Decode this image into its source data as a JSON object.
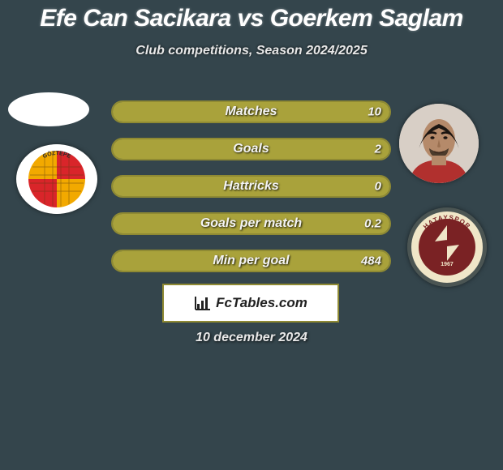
{
  "colors": {
    "background": "#34454c",
    "title": "#ffffff",
    "subtitle": "#e8e8e8",
    "bar_fill": "#a9a23b",
    "bar_border": "#8f8a33",
    "bar_text": "#f4f4f4",
    "brand_border": "#8f8a33",
    "date_text": "#e8e8e8",
    "badge_left_yellow": "#f2a900",
    "badge_left_red": "#d9252a",
    "badge_right_bg": "#7a2224",
    "badge_right_ring": "#f0e6c8"
  },
  "title": {
    "text": "Efe Can Sacikara vs Goerkem Saglam",
    "fontsize": 30
  },
  "subtitle": {
    "text": "Club competitions, Season 2024/2025",
    "fontsize": 16
  },
  "bars": {
    "label_fontsize": 16,
    "value_fontsize": 15,
    "items": [
      {
        "label": "Matches",
        "left_pct": 2,
        "right_pct": 98,
        "right_value": "10"
      },
      {
        "label": "Goals",
        "left_pct": 2,
        "right_pct": 98,
        "right_value": "2"
      },
      {
        "label": "Hattricks",
        "left_pct": 50,
        "right_pct": 50,
        "right_value": "0"
      },
      {
        "label": "Goals per match",
        "left_pct": 2,
        "right_pct": 98,
        "right_value": "0.2"
      },
      {
        "label": "Min per goal",
        "left_pct": 2,
        "right_pct": 98,
        "right_value": "484"
      }
    ]
  },
  "brand": {
    "text": "FcTables.com",
    "fontsize": 17
  },
  "date": {
    "text": "10 december 2024",
    "fontsize": 16
  },
  "badge_left": {
    "text": "GÖZTEPE"
  },
  "badge_right": {
    "text": "HATAYSPOR",
    "year": "1967"
  }
}
